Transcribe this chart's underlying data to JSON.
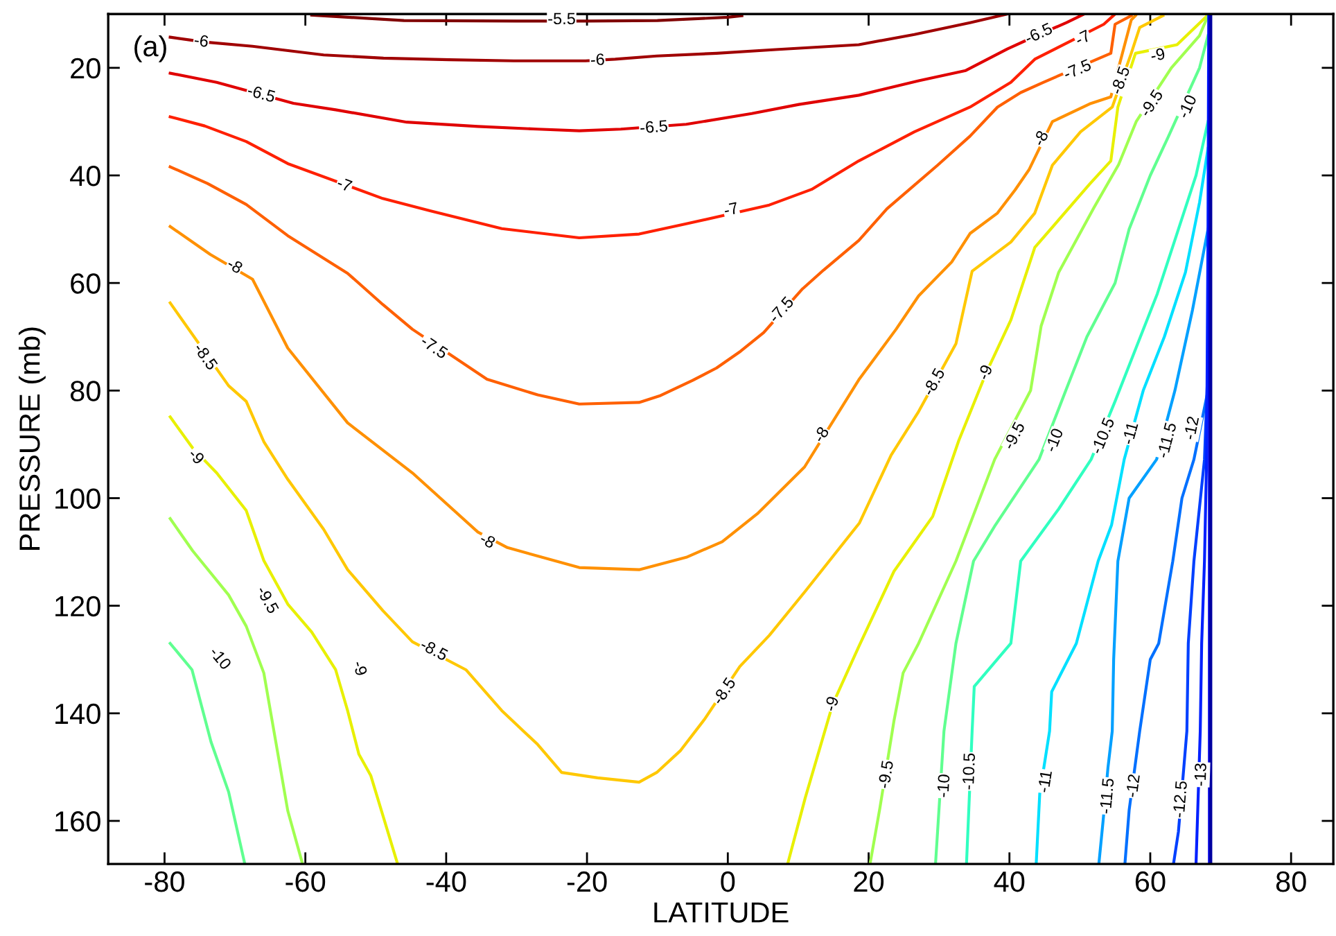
{
  "chart_data": {
    "type": "line",
    "xlabel": "LATITUDE",
    "ylabel": "PRESSURE (mb)",
    "xlim": [
      -88,
      86
    ],
    "ylim": [
      168,
      10
    ],
    "xticks": [
      -80,
      -60,
      -40,
      -20,
      0,
      20,
      40,
      60,
      80
    ],
    "yticks": [
      20,
      40,
      60,
      80,
      100,
      120,
      140,
      160
    ],
    "series": [
      {
        "color": "#800000",
        "x": [
          -59.1,
          -46,
          -30,
          -20,
          -10,
          0,
          2
        ],
        "values": [
          10.2,
          11.2,
          11.3,
          11.3,
          11.2,
          10.6,
          10.3
        ]
      },
      {
        "color": "#a00000",
        "x": [
          -79.2,
          -74.3,
          -67.5,
          -57.4,
          -48.9,
          -39.6,
          -30.4,
          -20.2,
          -16.0,
          -10.1,
          -1.6,
          6.8,
          18.6,
          26.5,
          34.4,
          39.7
        ],
        "values": [
          14.3,
          15.2,
          16.0,
          17.6,
          18.2,
          18.5,
          18.7,
          18.7,
          18.4,
          17.8,
          17.3,
          16.6,
          15.7,
          13.8,
          11.6,
          10.0
        ]
      },
      {
        "color": "#e00000",
        "x": [
          -79.2,
          -72.6,
          -61.7,
          -55.7,
          -45.6,
          -35.5,
          -27.0,
          -21.1,
          -15.2,
          -5.9,
          3.4,
          10.1,
          18.6,
          27.1,
          33.8,
          39.7,
          44.2,
          48.1,
          50.6
        ],
        "values": [
          21.0,
          22.7,
          26.6,
          27.8,
          30.1,
          30.9,
          31.4,
          31.7,
          31.4,
          30.5,
          28.5,
          26.8,
          25.1,
          22.4,
          20.5,
          16.5,
          13.8,
          11.6,
          10.0
        ]
      },
      {
        "color": "#ff2000",
        "x": [
          -79.2,
          -74.3,
          -68.4,
          -62.5,
          -49.0,
          -42.2,
          -32.1,
          -21.1,
          -12.6,
          -5.9,
          5.9,
          11.9,
          18.6,
          26.5,
          34.4,
          40.2,
          43.6,
          53.4,
          55.0
        ],
        "values": [
          29.1,
          30.8,
          33.7,
          37.8,
          44.3,
          46.6,
          49.9,
          51.6,
          50.9,
          49.0,
          45.5,
          42.6,
          37.3,
          31.9,
          27.3,
          22.7,
          18.4,
          11.9,
          10.0
        ]
      },
      {
        "color": "#ff6000",
        "x": [
          -79.2,
          -73.9,
          -68.4,
          -62.5,
          -54.0,
          -49.0,
          -44.8,
          -34.2,
          -27.0,
          -21.1,
          -12.6,
          -9.7,
          -5.0,
          -1.6,
          1.8,
          5.1,
          10.6,
          13.6,
          18.6,
          22.6,
          29.8,
          34.4,
          38.3,
          41.6,
          44.8,
          54.4,
          55.0,
          57.3
        ],
        "values": [
          38.4,
          41.5,
          45.4,
          51.2,
          58.2,
          64.0,
          68.6,
          77.9,
          80.8,
          82.5,
          82.2,
          81.0,
          78.1,
          75.8,
          72.7,
          69.2,
          61.1,
          57.6,
          52.1,
          46.2,
          38.1,
          32.7,
          27.3,
          24.6,
          22.7,
          17.3,
          11.9,
          10.3
        ]
      },
      {
        "color": "#ff9000",
        "x": [
          -79.2,
          -73.5,
          -67.5,
          -62.5,
          -54.0,
          -44.8,
          -35.5,
          -31.3,
          -21.1,
          -12.6,
          -5.9,
          -0.8,
          4.2,
          10.9,
          18.6,
          23.9,
          27.1,
          31.8,
          34.4,
          38.3,
          40.8,
          42.8,
          46.1,
          51.4,
          54.4,
          57.3,
          57.9
        ],
        "values": [
          49.5,
          54.7,
          59.3,
          72.1,
          86.0,
          95.3,
          106.3,
          109.2,
          112.9,
          113.3,
          111.0,
          108.1,
          102.9,
          94.2,
          78.0,
          68.6,
          62.4,
          56.1,
          50.8,
          47.0,
          42.7,
          38.9,
          30.0,
          26.7,
          25.4,
          11.1,
          10.3
        ]
      },
      {
        "color": "#ffc800",
        "x": [
          -79.2,
          -70.9,
          -68.4,
          -65.9,
          -62.5,
          -57.4,
          -54.0,
          -49.0,
          -44.8,
          -37.2,
          -32.1,
          -27.0,
          -23.6,
          -18.5,
          -12.6,
          -10.1,
          -6.7,
          -3.3,
          1.7,
          5.9,
          11.0,
          18.7,
          23.2,
          27.1,
          32.4,
          34.7,
          40.2,
          43.6,
          46.1,
          50.1,
          54.6,
          57.3,
          58.5,
          61.8
        ],
        "values": [
          63.7,
          79.1,
          82.0,
          89.5,
          96.5,
          105.8,
          113.3,
          120.9,
          126.7,
          131.9,
          139.5,
          145.8,
          151.0,
          152.0,
          152.8,
          151.0,
          146.9,
          141.1,
          131.3,
          125.5,
          117.3,
          104.6,
          92.0,
          83.9,
          71.3,
          57.8,
          52.4,
          47.0,
          38.1,
          31.9,
          27.3,
          17.3,
          12.5,
          10.3
        ]
      },
      {
        "color": "#e8f000",
        "x": [
          -79.2,
          -76.0,
          -72.6,
          -68.4,
          -65.9,
          -62.5,
          -59.1,
          -55.7,
          -54.0,
          -52.4,
          -50.7,
          -46.9
        ],
        "values": [
          84.9,
          90.7,
          95.3,
          102.3,
          111.6,
          119.7,
          124.9,
          131.9,
          139.5,
          147.6,
          151.6,
          168
        ]
      },
      {
        "color": "#e8f000",
        "x": [
          8.5,
          11.0,
          14.9,
          18.6,
          23.6,
          29.1,
          32.8,
          36.7,
          40.2,
          43.6,
          51.4,
          54.4,
          55.4,
          57.9,
          63.8,
          68.1
        ],
        "values": [
          168,
          155.7,
          138.3,
          127.6,
          113.6,
          103.4,
          89.3,
          76.7,
          66.9,
          53.4,
          41.6,
          37.3,
          27.3,
          17.3,
          15.7,
          10.3
        ]
      },
      {
        "color": "#a0ff50",
        "x": [
          -79.2,
          -76.0,
          -70.9,
          -68.4,
          -65.9,
          -64.2,
          -62.5,
          -60.4
        ],
        "values": [
          103.8,
          109.8,
          118.0,
          123.8,
          132.5,
          145.3,
          158.1,
          168
        ]
      },
      {
        "color": "#a0ff50",
        "x": [
          20.2,
          21.6,
          23.6,
          24.9,
          27.1,
          32.4,
          37.9,
          43.0,
          44.5,
          47.0,
          52.0,
          55.5,
          58.0,
          63.0,
          67.0,
          68.2
        ],
        "values": [
          168,
          157.6,
          141.4,
          132.5,
          127,
          111.7,
          92.8,
          80,
          68,
          58,
          46,
          38,
          30,
          20,
          14,
          10.3
        ]
      },
      {
        "color": "#60ff90",
        "x": [
          -79.2,
          -76.1,
          -73.4,
          -70.9,
          -68.6
        ],
        "values": [
          127.0,
          131.9,
          145.3,
          154.6,
          168
        ]
      },
      {
        "color": "#60ff90",
        "x": [
          29.5,
          30.7,
          32.4,
          34.9,
          38.0,
          44.2,
          48.0,
          51.0,
          55.0,
          57.0,
          60.0,
          62.5,
          67.0,
          68.2
        ],
        "values": [
          168,
          143.3,
          127,
          111.7,
          105,
          92.8,
          80,
          70,
          60,
          50,
          40,
          33,
          20,
          14
        ]
      },
      {
        "color": "#30ffc0",
        "x": [
          33.9,
          34.7,
          35.0,
          40.2,
          41.6,
          47.0,
          51.6,
          55.0,
          58.0,
          61.0,
          64.0,
          66.5,
          68.2
        ],
        "values": [
          168,
          143.3,
          135,
          127,
          111.7,
          102,
          92.8,
          82,
          72,
          62,
          50,
          40,
          30
        ]
      },
      {
        "color": "#00e0ff",
        "x": [
          43.8,
          44.3,
          45.7,
          46.0,
          49.5,
          52.6,
          54.5,
          56.3,
          59.0,
          62.0,
          65.0,
          67.0,
          68.2
        ],
        "values": [
          168,
          155,
          143.3,
          136,
          127,
          111.7,
          105,
          92.8,
          80,
          70,
          58,
          45,
          35
        ]
      },
      {
        "color": "#00a0ff",
        "x": [
          52.7,
          53.3,
          54.0,
          54.6,
          54.8,
          55.4,
          57.0,
          60.9,
          63.5,
          66.0,
          68.2
        ],
        "values": [
          168,
          160,
          150,
          143.3,
          130,
          111.7,
          100,
          92.8,
          80,
          65,
          50
        ]
      },
      {
        "color": "#0070ff",
        "x": [
          56.4,
          57.0,
          58.5,
          60.0,
          61.2,
          63.2,
          64.5,
          66.2,
          68.2
        ],
        "values": [
          168,
          158,
          143.3,
          130,
          127,
          111.7,
          100,
          92.8,
          80
        ]
      },
      {
        "color": "#0040ff",
        "x": [
          63.3,
          64.0,
          65.2,
          65.4,
          66.2,
          67.7,
          68.2
        ],
        "values": [
          168,
          162,
          143.3,
          127,
          111.7,
          92.8,
          75
        ]
      },
      {
        "color": "#0020ff",
        "x": [
          66.5,
          67.1,
          67.3,
          67.7,
          68.0,
          68.2,
          68.3
        ],
        "values": [
          168,
          143.3,
          127,
          111.7,
          92.8,
          50,
          10
        ]
      },
      {
        "color": "#0000e0",
        "x": [
          68.4,
          68.4
        ],
        "values": [
          10,
          168
        ]
      },
      {
        "color": "#0000a0",
        "x": [
          68.6,
          68.6
        ],
        "values": [
          10,
          168
        ]
      }
    ],
    "annotations": [
      "(a)",
      {
        "text": "-5.5",
        "x": -23.6,
        "y": 11.1
      },
      {
        "text": "-6",
        "x": -74.8,
        "y": 15.2
      },
      {
        "text": "-6",
        "x": -18.5,
        "y": 18.7
      },
      {
        "text": "-6.5",
        "x": -66.3,
        "y": 25.0
      },
      {
        "text": "-6.5",
        "x": -10.5,
        "y": 31.2
      },
      {
        "text": "-6.5",
        "x": 44.2,
        "y": 13.8
      },
      {
        "text": "-7",
        "x": -54.5,
        "y": 41.9
      },
      {
        "text": "-7",
        "x": 0.5,
        "y": 46.5
      },
      {
        "text": "-7",
        "x": 50.5,
        "y": 14.6
      },
      {
        "text": "-7.5",
        "x": -41.8,
        "y": 72.1
      },
      {
        "text": "-7.5",
        "x": 7.7,
        "y": 65.1
      },
      {
        "text": "-7.5",
        "x": 49.7,
        "y": 20.5
      },
      {
        "text": "-8",
        "x": -70.1,
        "y": 57.0
      },
      {
        "text": "-8",
        "x": -34.2,
        "y": 108.1
      },
      {
        "text": "-8",
        "x": 13.4,
        "y": 88.3
      },
      {
        "text": "-8",
        "x": 44.6,
        "y": 33.2
      },
      {
        "text": "-8.5",
        "x": -74.3,
        "y": 73.8
      },
      {
        "text": "-8.5",
        "x": -41.8,
        "y": 128.4
      },
      {
        "text": "-8.5",
        "x": -0.4,
        "y": 136.0
      },
      {
        "text": "-8.5",
        "x": 29.4,
        "y": 78.5
      },
      {
        "text": "-8.5",
        "x": 55.9,
        "y": 22.4
      },
      {
        "text": "-9",
        "x": -75.6,
        "y": 92.4
      },
      {
        "text": "-9",
        "x": -52.4,
        "y": 131.7
      },
      {
        "text": "-9",
        "x": 14.9,
        "y": 138.3
      },
      {
        "text": "-9",
        "x": 36.7,
        "y": 76.7
      },
      {
        "text": "-9",
        "x": 61.1,
        "y": 17.8
      },
      {
        "text": "-9.5",
        "x": -65.5,
        "y": 119.0
      },
      {
        "text": "-9.5",
        "x": 22.6,
        "y": 151.4
      },
      {
        "text": "-9.5",
        "x": 40.8,
        "y": 88.5
      },
      {
        "text": "-9.5",
        "x": 60.3,
        "y": 26.7
      },
      {
        "text": "-10",
        "x": -72.2,
        "y": 129.9
      },
      {
        "text": "-10",
        "x": 30.8,
        "y": 153.5
      },
      {
        "text": "-10",
        "x": 46.5,
        "y": 89.3
      },
      {
        "text": "-10",
        "x": 65.4,
        "y": 27.3
      },
      {
        "text": "-10.5",
        "x": 34.4,
        "y": 150.8
      },
      {
        "text": "-10.5",
        "x": 53.4,
        "y": 88.5
      },
      {
        "text": "-11",
        "x": 45.2,
        "y": 152.7
      },
      {
        "text": "-11",
        "x": 57.3,
        "y": 88.0
      },
      {
        "text": "-11.5",
        "x": 54.0,
        "y": 155.4
      },
      {
        "text": "-11.5",
        "x": 62.5,
        "y": 89.3
      },
      {
        "text": "-12",
        "x": 57.7,
        "y": 153.5
      },
      {
        "text": "-12",
        "x": 66.0,
        "y": 87.0
      },
      {
        "text": "-12.5",
        "x": 64.4,
        "y": 156.0
      },
      {
        "text": "-13",
        "x": 67.3,
        "y": 151.4
      }
    ]
  }
}
